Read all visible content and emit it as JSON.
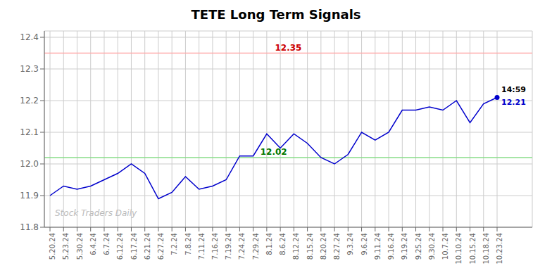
{
  "chart_data": {
    "type": "line",
    "title": "TETE Long Term Signals",
    "categories": [
      "5.20.24",
      "5.23.24",
      "5.30.24",
      "6.4.24",
      "6.7.24",
      "6.12.24",
      "6.17.24",
      "6.21.24",
      "6.27.24",
      "7.2.24",
      "7.8.24",
      "7.11.24",
      "7.16.24",
      "7.19.24",
      "7.24.24",
      "7.29.24",
      "8.1.24",
      "8.6.24",
      "8.12.24",
      "8.15.24",
      "8.20.24",
      "8.27.24",
      "9.3.24",
      "9.6.24",
      "9.11.24",
      "9.16.24",
      "9.19.24",
      "9.25.24",
      "9.30.24",
      "10.7.24",
      "10.10.24",
      "10.15.24",
      "10.18.24",
      "10.23.24"
    ],
    "values": [
      11.9,
      11.93,
      11.92,
      11.93,
      11.95,
      11.97,
      12.0,
      11.97,
      11.89,
      11.91,
      11.96,
      11.92,
      11.93,
      11.95,
      12.025,
      12.025,
      12.095,
      12.05,
      12.095,
      12.065,
      12.02,
      12.0,
      12.03,
      12.1,
      12.075,
      12.1,
      12.17,
      12.17,
      12.18,
      12.17,
      12.2,
      12.13,
      12.19,
      12.21
    ],
    "color": "#0000cc",
    "marker": "last",
    "ylim": [
      11.8,
      12.42
    ],
    "yticks": [
      11.8,
      11.9,
      {
        "value": 12.0,
        "label": "12.0"
      },
      12.1,
      12.2,
      12.3,
      12.4
    ],
    "grid": true,
    "reference_lines": [
      {
        "value": 12.35,
        "color": "#ffaaaa",
        "label": {
          "text": "12.35",
          "color": "#cc0000"
        }
      },
      {
        "value": 12.02,
        "color": "#88dd88",
        "label": {
          "text": "12.02",
          "color": "#007700"
        }
      }
    ],
    "annotations": [
      {
        "text": "14:59",
        "color": "#000000"
      },
      {
        "text": "12.21",
        "color": "#0000cc"
      }
    ],
    "watermark": {
      "text": "Stock Traders Daily",
      "color": "#bbbbbb"
    }
  }
}
